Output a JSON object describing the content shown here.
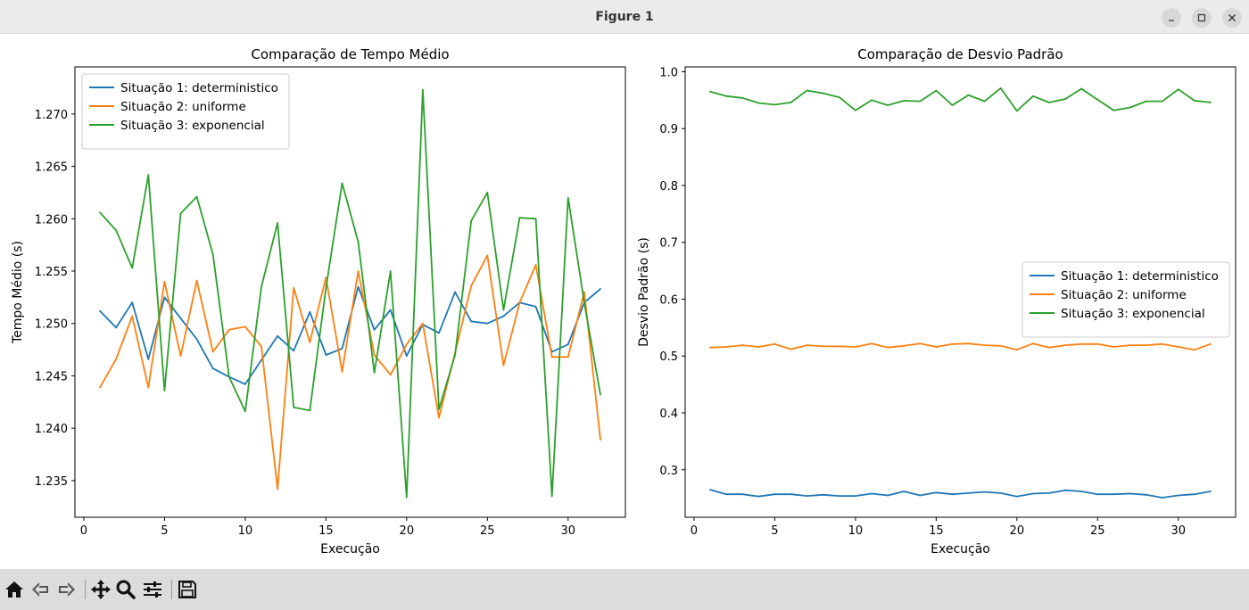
{
  "window": {
    "title": "Figure 1",
    "controls": [
      "minimize",
      "maximize",
      "close"
    ]
  },
  "toolbar": {
    "buttons": [
      "home-icon",
      "back-icon",
      "forward-icon",
      "pan-icon",
      "zoom-icon",
      "configure-subplots-icon",
      "save-icon"
    ]
  },
  "chart_data": [
    {
      "type": "line",
      "title": "Comparação de Tempo Médio",
      "xlabel": "Execução",
      "ylabel": "Tempo Médio (s)",
      "xlim": [
        -0.55,
        33.55
      ],
      "ylim": [
        1.2315,
        1.2745
      ],
      "xticks": [
        0,
        5,
        10,
        15,
        20,
        25,
        30
      ],
      "yticks": [
        1.235,
        1.24,
        1.245,
        1.25,
        1.255,
        1.26,
        1.265,
        1.27
      ],
      "ytick_labels": [
        "1.235",
        "1.240",
        "1.245",
        "1.250",
        "1.255",
        "1.260",
        "1.265",
        "1.270"
      ],
      "legend_position": "upper-left",
      "x": [
        1,
        2,
        3,
        4,
        5,
        6,
        7,
        8,
        9,
        10,
        11,
        12,
        13,
        14,
        15,
        16,
        17,
        18,
        19,
        20,
        21,
        22,
        23,
        24,
        25,
        26,
        27,
        28,
        29,
        30,
        31,
        32
      ],
      "series": [
        {
          "name": "Situação 1: deterministico",
          "color": "#1f77b4",
          "values": [
            1.2512,
            1.2496,
            1.252,
            1.2466,
            1.2525,
            1.2505,
            1.2485,
            1.2457,
            1.2449,
            1.2442,
            1.2465,
            1.2488,
            1.2474,
            1.2511,
            1.247,
            1.2476,
            1.2535,
            1.2494,
            1.2513,
            1.2469,
            1.2499,
            1.2491,
            1.253,
            1.2502,
            1.25,
            1.2507,
            1.252,
            1.2516,
            1.2473,
            1.248,
            1.252,
            1.2533
          ]
        },
        {
          "name": "Situação 2: uniforme",
          "color": "#ff7f0e",
          "values": [
            1.2439,
            1.2466,
            1.2507,
            1.2439,
            1.254,
            1.2469,
            1.2541,
            1.2473,
            1.2494,
            1.2497,
            1.2478,
            1.2342,
            1.2534,
            1.2482,
            1.2544,
            1.2454,
            1.255,
            1.247,
            1.2451,
            1.248,
            1.25,
            1.241,
            1.2472,
            1.2536,
            1.2565,
            1.246,
            1.252,
            1.2556,
            1.2468,
            1.2468,
            1.253,
            1.2389
          ]
        },
        {
          "name": "Situação 3: exponencial",
          "color": "#2ca02c",
          "values": [
            1.2606,
            1.2589,
            1.2553,
            1.2642,
            1.2436,
            1.2605,
            1.2621,
            1.2566,
            1.2449,
            1.2416,
            1.2535,
            1.2596,
            1.242,
            1.2417,
            1.2534,
            1.2634,
            1.2578,
            1.2453,
            1.255,
            1.2334,
            1.2723,
            1.2418,
            1.247,
            1.2598,
            1.2625,
            1.2513,
            1.2601,
            1.26,
            1.2335,
            1.262,
            1.252,
            1.2432
          ]
        }
      ]
    },
    {
      "type": "line",
      "title": "Comparação de Desvio Padrão",
      "xlabel": "Execução",
      "ylabel": "Desvio Padrão (s)",
      "xlim": [
        -0.55,
        33.55
      ],
      "ylim": [
        0.2165,
        1.0085
      ],
      "xticks": [
        0,
        5,
        10,
        15,
        20,
        25,
        30
      ],
      "yticks": [
        0.3,
        0.4,
        0.5,
        0.6,
        0.7,
        0.8,
        0.9,
        1.0
      ],
      "ytick_labels": [
        "0.3",
        "0.4",
        "0.5",
        "0.6",
        "0.7",
        "0.8",
        "0.9",
        "1.0"
      ],
      "legend_position": "center-right",
      "x": [
        1,
        2,
        3,
        4,
        5,
        6,
        7,
        8,
        9,
        10,
        11,
        12,
        13,
        14,
        15,
        16,
        17,
        18,
        19,
        20,
        21,
        22,
        23,
        24,
        25,
        26,
        27,
        28,
        29,
        30,
        31,
        32
      ],
      "series": [
        {
          "name": "Situação 1: deterministico",
          "color": "#1f77b4",
          "values": [
            0.265,
            0.257,
            0.257,
            0.253,
            0.257,
            0.257,
            0.254,
            0.256,
            0.254,
            0.254,
            0.258,
            0.255,
            0.262,
            0.255,
            0.26,
            0.257,
            0.259,
            0.261,
            0.259,
            0.253,
            0.258,
            0.259,
            0.264,
            0.262,
            0.257,
            0.257,
            0.258,
            0.256,
            0.251,
            0.255,
            0.257,
            0.262
          ]
        },
        {
          "name": "Situação 2: uniforme",
          "color": "#ff7f0e",
          "values": [
            0.515,
            0.516,
            0.519,
            0.516,
            0.521,
            0.512,
            0.519,
            0.517,
            0.517,
            0.516,
            0.522,
            0.515,
            0.518,
            0.522,
            0.516,
            0.521,
            0.522,
            0.519,
            0.518,
            0.511,
            0.522,
            0.515,
            0.519,
            0.521,
            0.521,
            0.516,
            0.519,
            0.519,
            0.521,
            0.516,
            0.511,
            0.521
          ]
        },
        {
          "name": "Situação 3: exponencial",
          "color": "#2ca02c",
          "values": [
            0.965,
            0.957,
            0.954,
            0.945,
            0.942,
            0.946,
            0.967,
            0.962,
            0.955,
            0.932,
            0.95,
            0.941,
            0.949,
            0.948,
            0.967,
            0.941,
            0.959,
            0.948,
            0.971,
            0.931,
            0.957,
            0.946,
            0.952,
            0.97,
            0.951,
            0.932,
            0.937,
            0.948,
            0.948,
            0.969,
            0.949,
            0.946
          ]
        }
      ]
    }
  ]
}
